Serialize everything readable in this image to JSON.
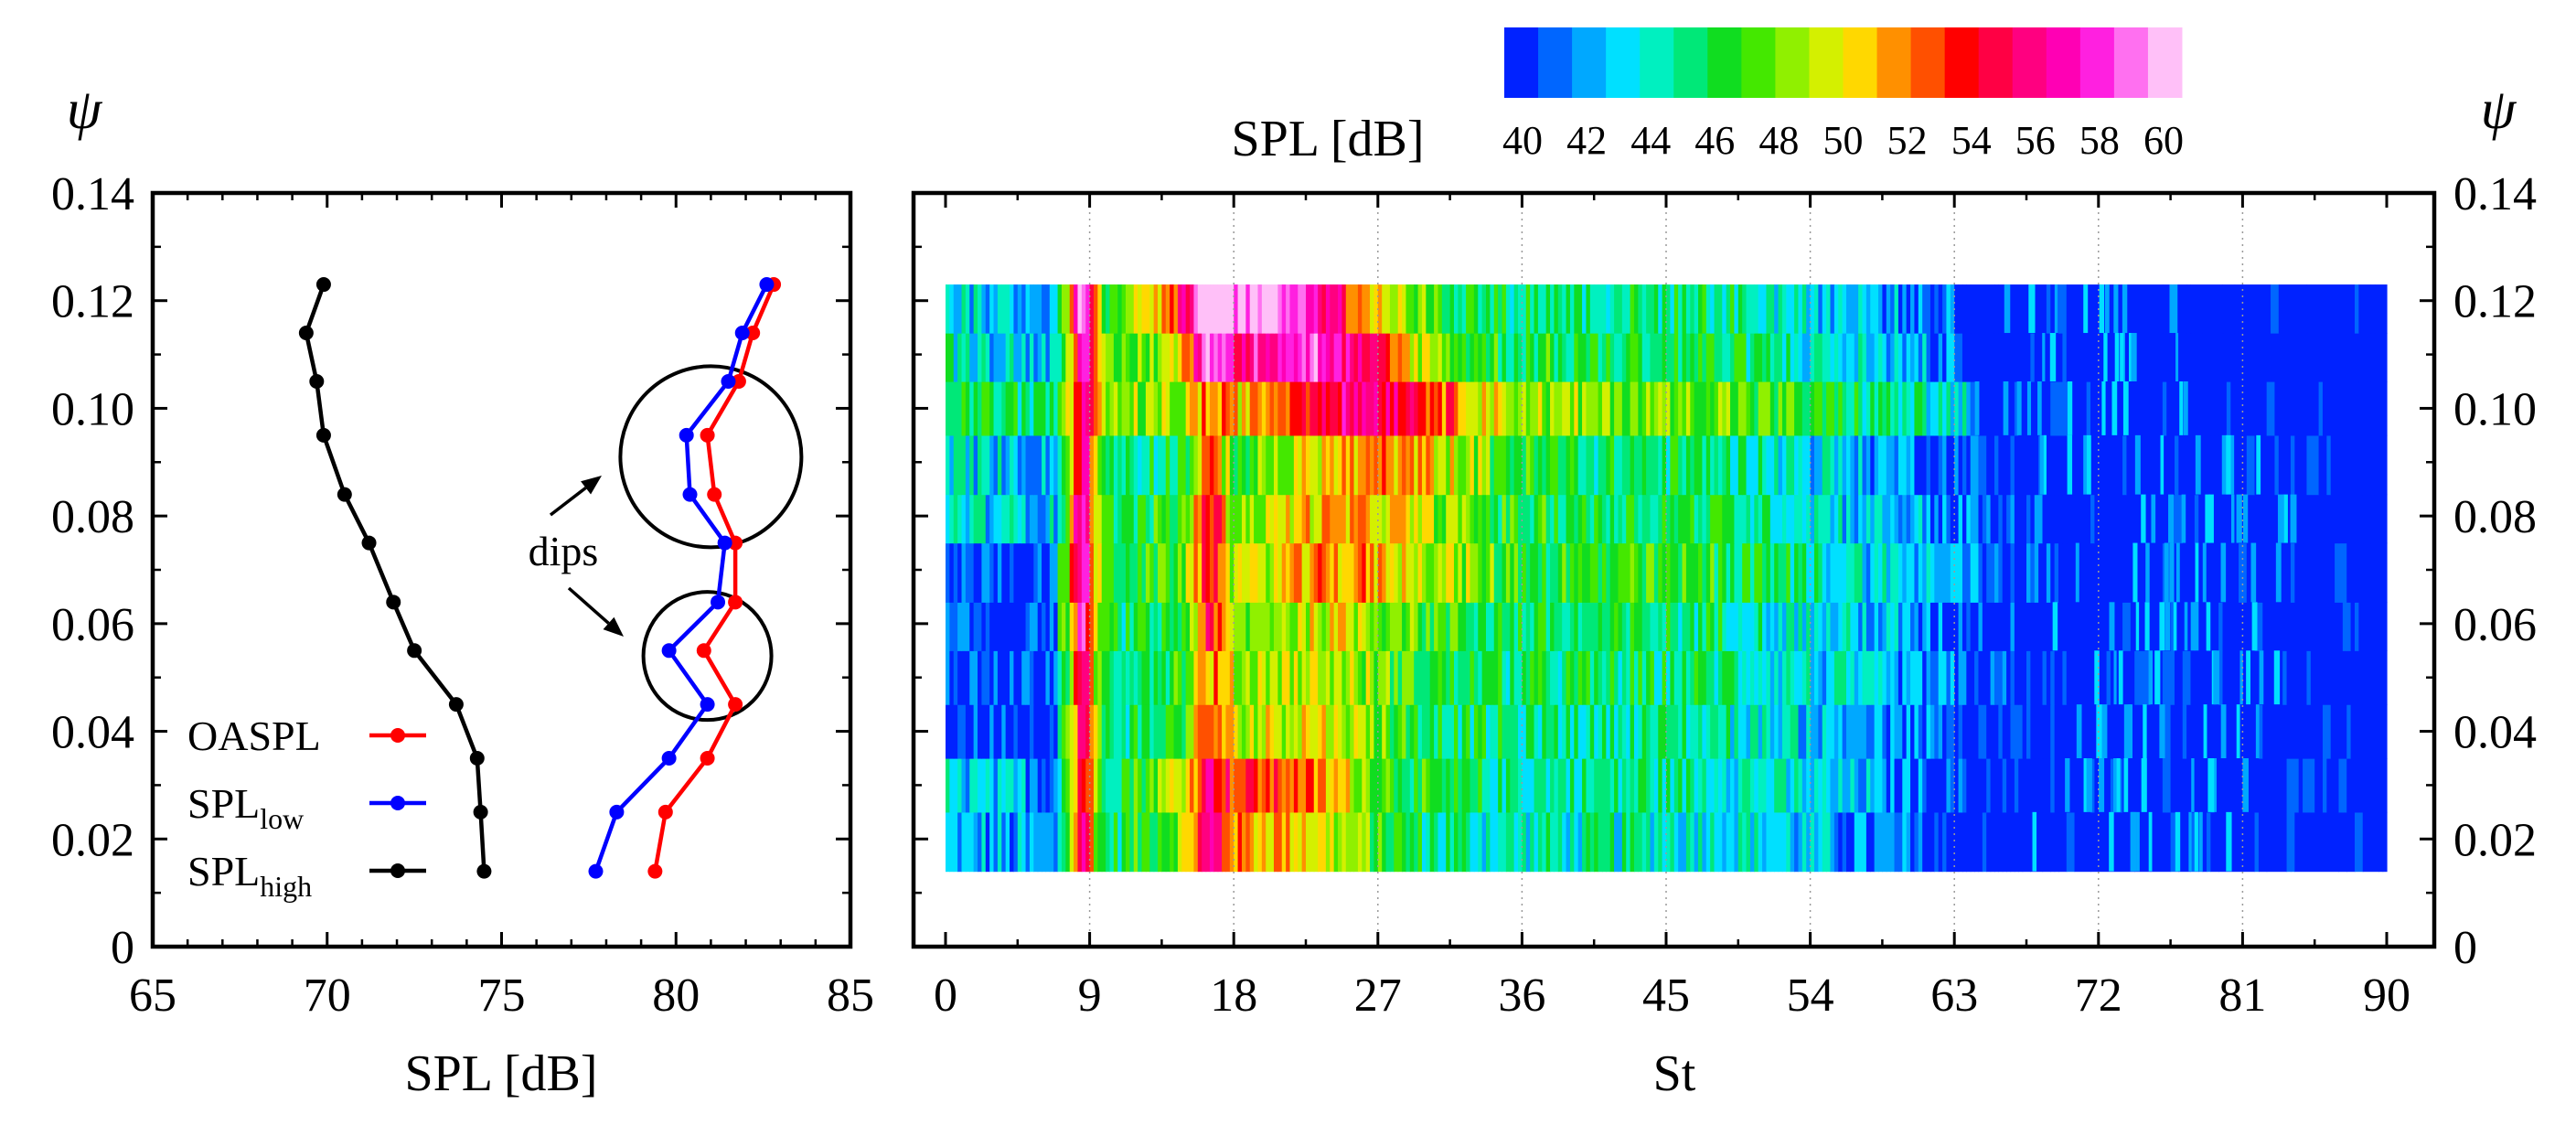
{
  "chart_data": [
    {
      "type": "line",
      "xlabel": "SPL [dB]",
      "ylabel": "ψ",
      "xlim": [
        65,
        85
      ],
      "ylim": [
        0,
        0.14
      ],
      "x_ticks": [
        "65",
        "70",
        "75",
        "80",
        "85"
      ],
      "y_ticks": [
        "0",
        "0.02",
        "0.04",
        "0.06",
        "0.08",
        "0.10",
        "0.12",
        "0.14"
      ],
      "y": [
        0.014,
        0.025,
        0.035,
        0.045,
        0.055,
        0.064,
        0.075,
        0.084,
        0.095,
        0.105,
        0.114,
        0.123
      ],
      "series": [
        {
          "name": "OASPL",
          "color": "#ff0000",
          "values": [
            79.4,
            79.7,
            80.9,
            81.7,
            80.8,
            81.7,
            81.7,
            81.1,
            80.9,
            81.8,
            82.2,
            82.8
          ]
        },
        {
          "name": "SPL_low",
          "color": "#0000ff",
          "values": [
            77.7,
            78.3,
            79.8,
            80.9,
            79.8,
            81.2,
            81.4,
            80.4,
            80.3,
            81.5,
            81.9,
            82.6
          ]
        },
        {
          "name": "SPL_high",
          "color": "#000000",
          "values": [
            74.5,
            74.4,
            74.3,
            73.7,
            72.5,
            71.9,
            71.2,
            70.5,
            69.9,
            69.7,
            69.4,
            69.9
          ]
        }
      ],
      "legend": [
        {
          "base": "OASPL",
          "sub": ""
        },
        {
          "base": "SPL",
          "sub": "low"
        },
        {
          "base": "SPL",
          "sub": "high"
        }
      ],
      "annotation": {
        "text": "dips",
        "circles": [
          {
            "x": 81.0,
            "y": 0.091
          },
          {
            "x": 80.9,
            "y": 0.054
          }
        ]
      }
    },
    {
      "type": "heatmap",
      "xlabel": "St",
      "ylabel": "ψ",
      "xlim": [
        0,
        90
      ],
      "ylim": [
        0,
        0.14
      ],
      "x_ticks": [
        "0",
        "9",
        "18",
        "27",
        "36",
        "45",
        "54",
        "63",
        "72",
        "81",
        "90"
      ],
      "y_ticks": [
        "0",
        "0.02",
        "0.04",
        "0.06",
        "0.08",
        "0.10",
        "0.12",
        "0.14"
      ],
      "y_edges": [
        0.014,
        0.025,
        0.035,
        0.045,
        0.055,
        0.064,
        0.075,
        0.084,
        0.095,
        0.105,
        0.114,
        0.123
      ],
      "colorbar": {
        "label": "SPL [dB]",
        "range": [
          40,
          60
        ],
        "tick_labels": [
          "40",
          "42",
          "44",
          "46",
          "48",
          "50",
          "52",
          "54",
          "56",
          "58",
          "60"
        ],
        "colors": [
          "#0022ff",
          "#0066ff",
          "#00a8ff",
          "#00e0ff",
          "#00f0c0",
          "#00e878",
          "#10dd20",
          "#44e800",
          "#90f000",
          "#d4f000",
          "#ffd800",
          "#ff9000",
          "#ff5000",
          "#ff0000",
          "#ff0044",
          "#ff0080",
          "#ff00b4",
          "#ff20e0",
          "#ff70f0",
          "#ffc0f8"
        ]
      },
      "row_profiles": [
        {
          "tonal": 52,
          "floor": 44.5,
          "low_flat": false,
          "hf_cutoff": 67,
          "lump": 7,
          "lumpc": 20
        },
        {
          "tonal": 51,
          "floor": 45.0,
          "low_flat": false,
          "hf_cutoff": 67,
          "lump": 8,
          "lumpc": 20
        },
        {
          "tonal": 52,
          "floor": 45.0,
          "low_flat": true,
          "hf_cutoff": 69,
          "lump": 5,
          "lumpc": 22
        },
        {
          "tonal": 51,
          "floor": 45.5,
          "low_flat": true,
          "hf_cutoff": 70,
          "lump": 4,
          "lumpc": 22
        },
        {
          "tonal": 54,
          "floor": 45.5,
          "low_flat": true,
          "hf_cutoff": 69,
          "lump": 4,
          "lumpc": 24
        },
        {
          "tonal": 55,
          "floor": 46.5,
          "low_flat": true,
          "hf_cutoff": 70,
          "lump": 5,
          "lumpc": 25
        },
        {
          "tonal": 55,
          "floor": 46.0,
          "low_flat": false,
          "hf_cutoff": 70,
          "lump": 5,
          "lumpc": 25
        },
        {
          "tonal": 53,
          "floor": 45.5,
          "low_flat": false,
          "hf_cutoff": 68,
          "lump": 6,
          "lumpc": 27
        },
        {
          "tonal": 52,
          "floor": 48.0,
          "low_flat": false,
          "hf_cutoff": 64,
          "lump": 8,
          "lumpc": 26
        },
        {
          "tonal": 55,
          "floor": 46.0,
          "low_flat": false,
          "hf_cutoff": 63,
          "lump": 12,
          "lumpc": 22
        },
        {
          "tonal": 56,
          "floor": 45.5,
          "low_flat": false,
          "hf_cutoff": 63,
          "lump": 14,
          "lumpc": 20
        }
      ]
    }
  ]
}
